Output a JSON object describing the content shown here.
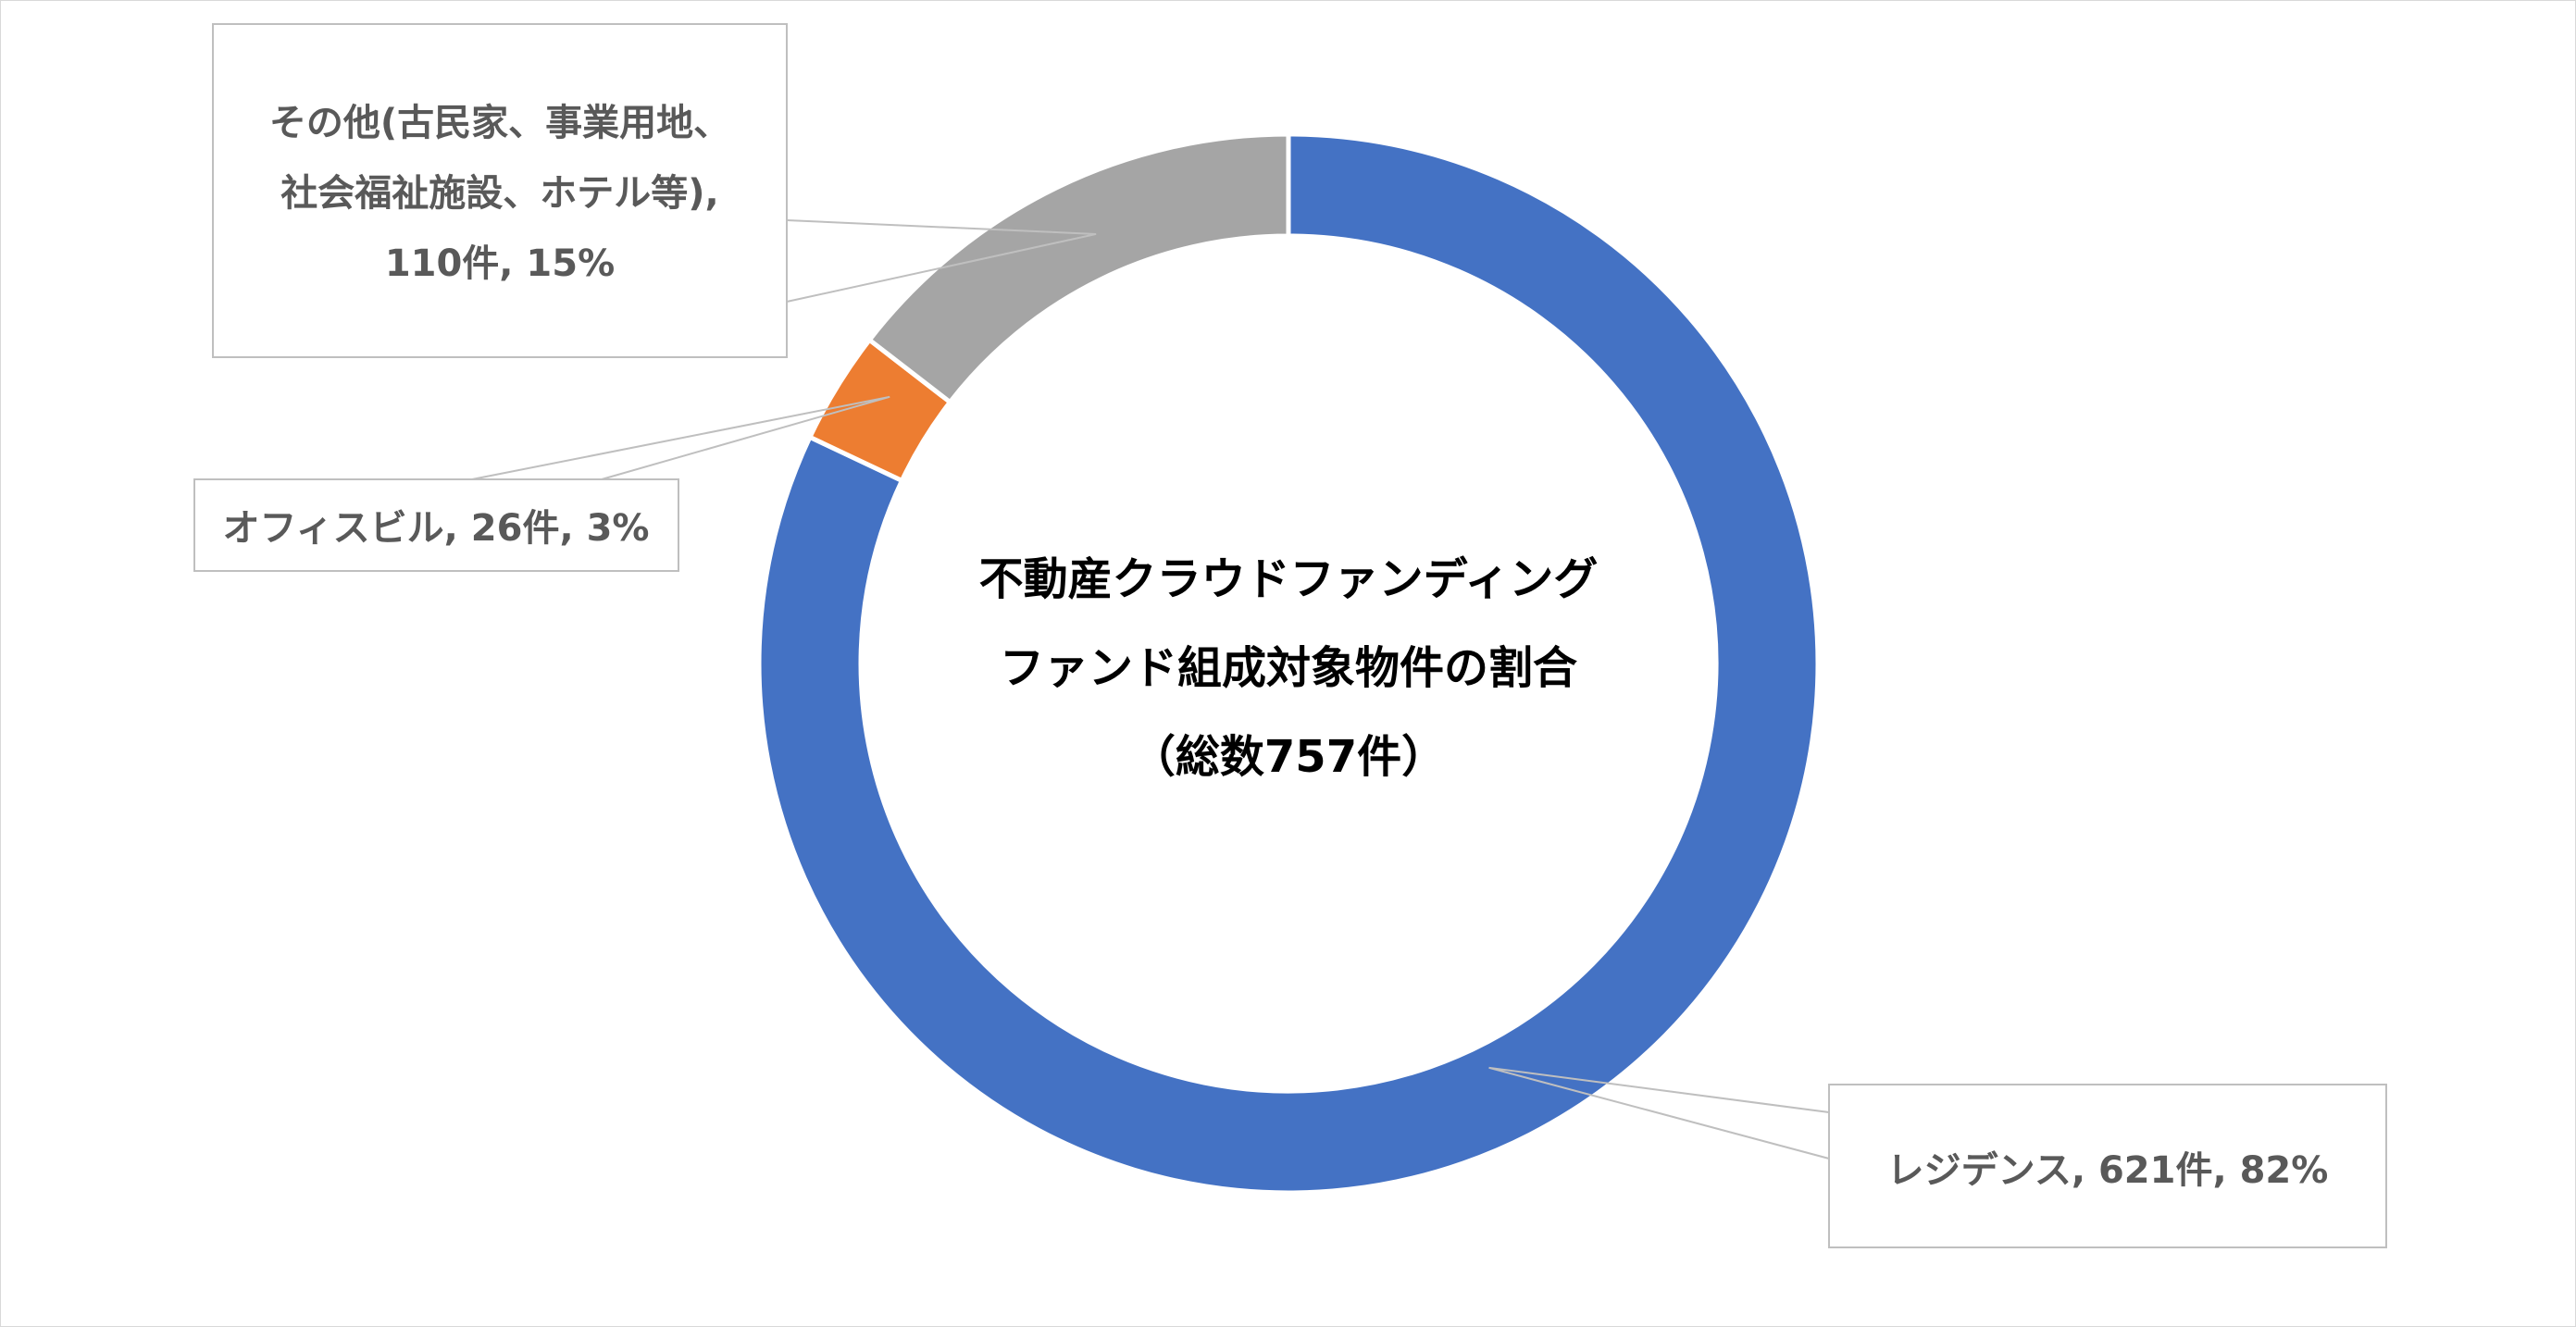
{
  "chart_data": {
    "type": "pie",
    "variant": "donut",
    "title_lines": [
      "不動産クラウドファンディング",
      "ファンド組成対象物件の割合",
      "（総数757件）"
    ],
    "total": 757,
    "slices": [
      {
        "name": "レジデンス",
        "value": 621,
        "percent": 82,
        "color": "#4472C4",
        "label_lines": [
          "レジデンス, 621件, 82%"
        ]
      },
      {
        "name": "オフィスビル",
        "value": 26,
        "percent": 3,
        "color": "#ED7D31",
        "label_lines": [
          "オフィスビル, 26件, 3%"
        ]
      },
      {
        "name": "その他(古民家、事業用地、社会福祉施設、ホテル等)",
        "value": 110,
        "percent": 15,
        "color": "#A5A5A5",
        "label_lines": [
          "その他(古民家、事業用地、",
          "社会福祉施設、ホテル等),",
          "110件, 15%"
        ]
      }
    ],
    "legend": "none"
  }
}
